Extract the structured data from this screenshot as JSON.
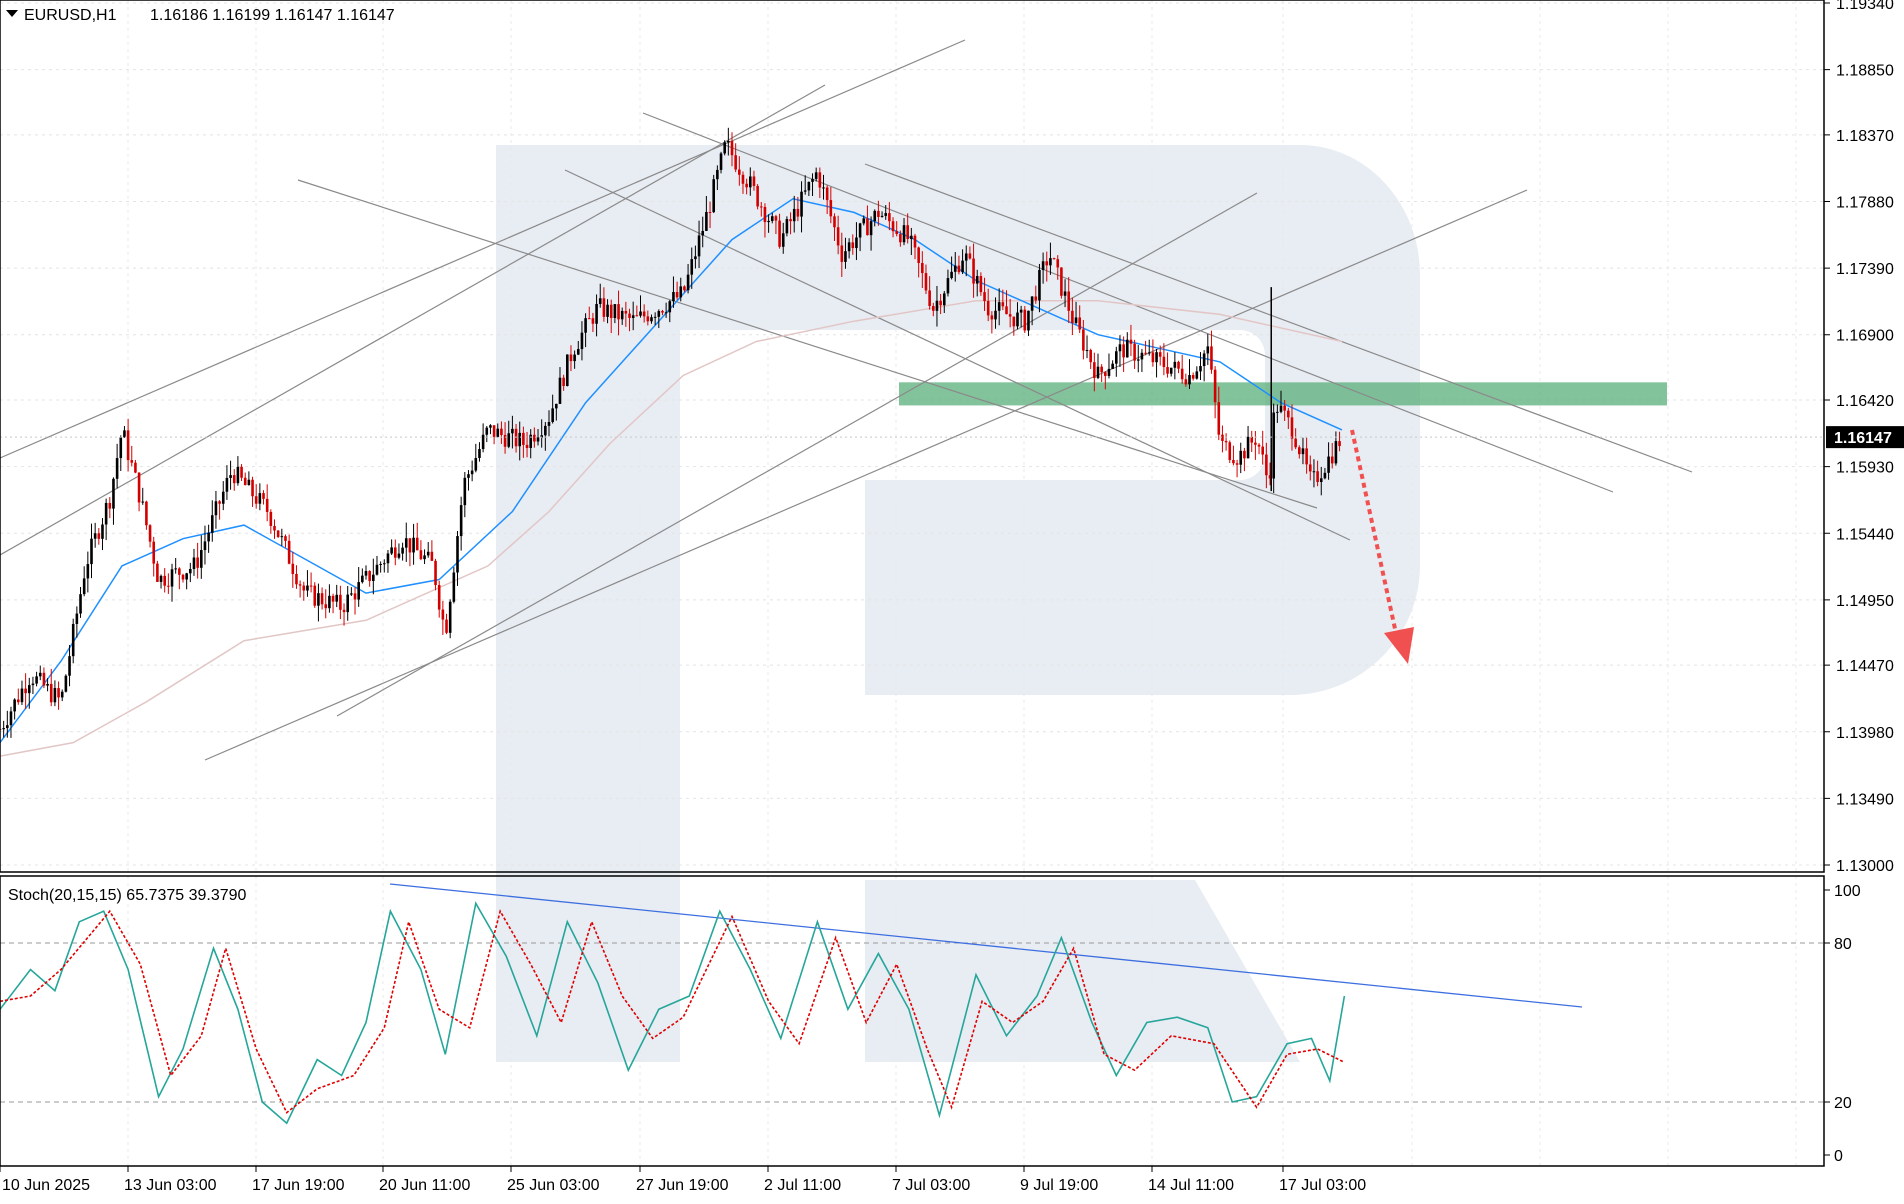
{
  "chart_data": [
    {
      "type": "candlestick",
      "symbol": "EURUSD,H1",
      "ohlc_label": "1.16186 1.16199 1.16147 1.16147",
      "current_price_label": "1.16147",
      "current_price": 1.16147,
      "ylim": [
        1.13,
        1.1934
      ],
      "y_ticks": [
        "1.19340",
        "1.18850",
        "1.18370",
        "1.17880",
        "1.17390",
        "1.16900",
        "1.16420",
        "1.15930",
        "1.15440",
        "1.14950",
        "1.14470",
        "1.13980",
        "1.13490",
        "1.13000"
      ],
      "x_ticks": [
        "10 Jun 2025",
        "13 Jun 03:00",
        "17 Jun 19:00",
        "20 Jun 11:00",
        "25 Jun 03:00",
        "27 Jun 19:00",
        "2 Jul 11:00",
        "7 Jul 03:00",
        "9 Jul 19:00",
        "14 Jul 11:00",
        "17 Jul 03:00"
      ],
      "price_path": [
        [
          0,
          1.14
        ],
        [
          25,
          1.144
        ],
        [
          50,
          1.142
        ],
        [
          70,
          1.152
        ],
        [
          90,
          1.157
        ],
        [
          100,
          1.162
        ],
        [
          115,
          1.157
        ],
        [
          130,
          1.151
        ],
        [
          160,
          1.152
        ],
        [
          190,
          1.159
        ],
        [
          220,
          1.156
        ],
        [
          250,
          1.15
        ],
        [
          280,
          1.149
        ],
        [
          300,
          1.151
        ],
        [
          330,
          1.154
        ],
        [
          355,
          1.152
        ],
        [
          365,
          1.147
        ],
        [
          380,
          1.158
        ],
        [
          400,
          1.162
        ],
        [
          430,
          1.161
        ],
        [
          450,
          1.163
        ],
        [
          470,
          1.168
        ],
        [
          490,
          1.171
        ],
        [
          520,
          1.17
        ],
        [
          560,
          1.172
        ],
        [
          580,
          1.178
        ],
        [
          595,
          1.183
        ],
        [
          615,
          1.18
        ],
        [
          640,
          1.176
        ],
        [
          670,
          1.181
        ],
        [
          690,
          1.175
        ],
        [
          720,
          1.178
        ],
        [
          745,
          1.176
        ],
        [
          765,
          1.171
        ],
        [
          790,
          1.175
        ],
        [
          810,
          1.171
        ],
        [
          840,
          1.17
        ],
        [
          860,
          1.175
        ],
        [
          880,
          1.17
        ],
        [
          900,
          1.166
        ],
        [
          920,
          1.168
        ],
        [
          950,
          1.167
        ],
        [
          975,
          1.166
        ],
        [
          990,
          1.168
        ],
        [
          1000,
          1.161
        ],
        [
          1015,
          1.16
        ],
        [
          1030,
          1.1615
        ],
        [
          1040,
          1.158
        ],
        [
          1045,
          1.164
        ],
        [
          1060,
          1.162
        ],
        [
          1075,
          1.158
        ],
        [
          1090,
          1.16
        ],
        [
          1100,
          1.1615
        ]
      ],
      "ma_fast_path": [
        [
          0,
          1.139
        ],
        [
          50,
          1.145
        ],
        [
          100,
          1.152
        ],
        [
          150,
          1.154
        ],
        [
          200,
          1.155
        ],
        [
          260,
          1.152
        ],
        [
          300,
          1.15
        ],
        [
          360,
          1.151
        ],
        [
          420,
          1.156
        ],
        [
          480,
          1.164
        ],
        [
          540,
          1.17
        ],
        [
          600,
          1.176
        ],
        [
          650,
          1.179
        ],
        [
          700,
          1.178
        ],
        [
          750,
          1.176
        ],
        [
          800,
          1.173
        ],
        [
          850,
          1.171
        ],
        [
          900,
          1.169
        ],
        [
          950,
          1.168
        ],
        [
          1000,
          1.167
        ],
        [
          1050,
          1.164
        ],
        [
          1100,
          1.162
        ]
      ],
      "ma_slow_path": [
        [
          0,
          1.138
        ],
        [
          60,
          1.139
        ],
        [
          120,
          1.142
        ],
        [
          200,
          1.1465
        ],
        [
          300,
          1.148
        ],
        [
          400,
          1.152
        ],
        [
          450,
          1.156
        ],
        [
          500,
          1.161
        ],
        [
          560,
          1.166
        ],
        [
          620,
          1.1685
        ],
        [
          700,
          1.17
        ],
        [
          800,
          1.1715
        ],
        [
          900,
          1.1715
        ],
        [
          1000,
          1.1705
        ],
        [
          1100,
          1.1685
        ]
      ],
      "resistance_zone": [
        1.1638,
        1.1655
      ],
      "colors": {
        "bull": "#000000",
        "bear": "#d40000",
        "ma_fast": "#1e90ff",
        "ma_slow": "#e2c6c6",
        "zone": "#5aaf7a",
        "arrow": "#f05050",
        "trend": "#8a8a8a"
      }
    },
    {
      "type": "line",
      "indicator": "Stoch(20,15,15) 65.7375 39.3790",
      "ylim": [
        0,
        100
      ],
      "y_ticks": [
        "100",
        "80",
        "20",
        "0"
      ],
      "levels": [
        80,
        20
      ],
      "series": [
        {
          "color": "#26a69a",
          "values": [
            [
              0,
              55
            ],
            [
              25,
              70
            ],
            [
              45,
              62
            ],
            [
              65,
              88
            ],
            [
              85,
              92
            ],
            [
              105,
              70
            ],
            [
              130,
              22
            ],
            [
              150,
              40
            ],
            [
              175,
              78
            ],
            [
              195,
              55
            ],
            [
              215,
              20
            ],
            [
              235,
              12
            ],
            [
              260,
              36
            ],
            [
              280,
              30
            ],
            [
              300,
              50
            ],
            [
              320,
              92
            ],
            [
              345,
              70
            ],
            [
              365,
              38
            ],
            [
              390,
              95
            ],
            [
              415,
              75
            ],
            [
              440,
              45
            ],
            [
              465,
              88
            ],
            [
              490,
              65
            ],
            [
              515,
              32
            ],
            [
              540,
              55
            ],
            [
              565,
              60
            ],
            [
              590,
              92
            ],
            [
              615,
              70
            ],
            [
              640,
              44
            ],
            [
              670,
              88
            ],
            [
              695,
              55
            ],
            [
              720,
              76
            ],
            [
              745,
              55
            ],
            [
              770,
              15
            ],
            [
              800,
              68
            ],
            [
              825,
              45
            ],
            [
              850,
              60
            ],
            [
              870,
              82
            ],
            [
              895,
              50
            ],
            [
              915,
              30
            ],
            [
              940,
              50
            ],
            [
              965,
              52
            ],
            [
              990,
              48
            ],
            [
              1010,
              20
            ],
            [
              1030,
              22
            ],
            [
              1055,
              42
            ],
            [
              1075,
              44
            ],
            [
              1090,
              28
            ],
            [
              1102,
              60
            ]
          ]
        },
        {
          "color": "#e00000",
          "values": [
            [
              0,
              58
            ],
            [
              25,
              60
            ],
            [
              50,
              70
            ],
            [
              90,
              92
            ],
            [
              115,
              72
            ],
            [
              140,
              30
            ],
            [
              165,
              45
            ],
            [
              185,
              78
            ],
            [
              210,
              40
            ],
            [
              235,
              16
            ],
            [
              260,
              25
            ],
            [
              290,
              30
            ],
            [
              315,
              48
            ],
            [
              335,
              88
            ],
            [
              360,
              55
            ],
            [
              385,
              48
            ],
            [
              410,
              92
            ],
            [
              435,
              72
            ],
            [
              460,
              50
            ],
            [
              485,
              88
            ],
            [
              510,
              60
            ],
            [
              535,
              44
            ],
            [
              560,
              52
            ],
            [
              600,
              90
            ],
            [
              630,
              58
            ],
            [
              655,
              42
            ],
            [
              685,
              82
            ],
            [
              710,
              50
            ],
            [
              735,
              72
            ],
            [
              760,
              40
            ],
            [
              780,
              18
            ],
            [
              805,
              58
            ],
            [
              830,
              50
            ],
            [
              855,
              58
            ],
            [
              880,
              78
            ],
            [
              905,
              38
            ],
            [
              930,
              32
            ],
            [
              960,
              45
            ],
            [
              995,
              42
            ],
            [
              1030,
              18
            ],
            [
              1055,
              38
            ],
            [
              1080,
              40
            ],
            [
              1102,
              35
            ]
          ]
        }
      ]
    }
  ]
}
